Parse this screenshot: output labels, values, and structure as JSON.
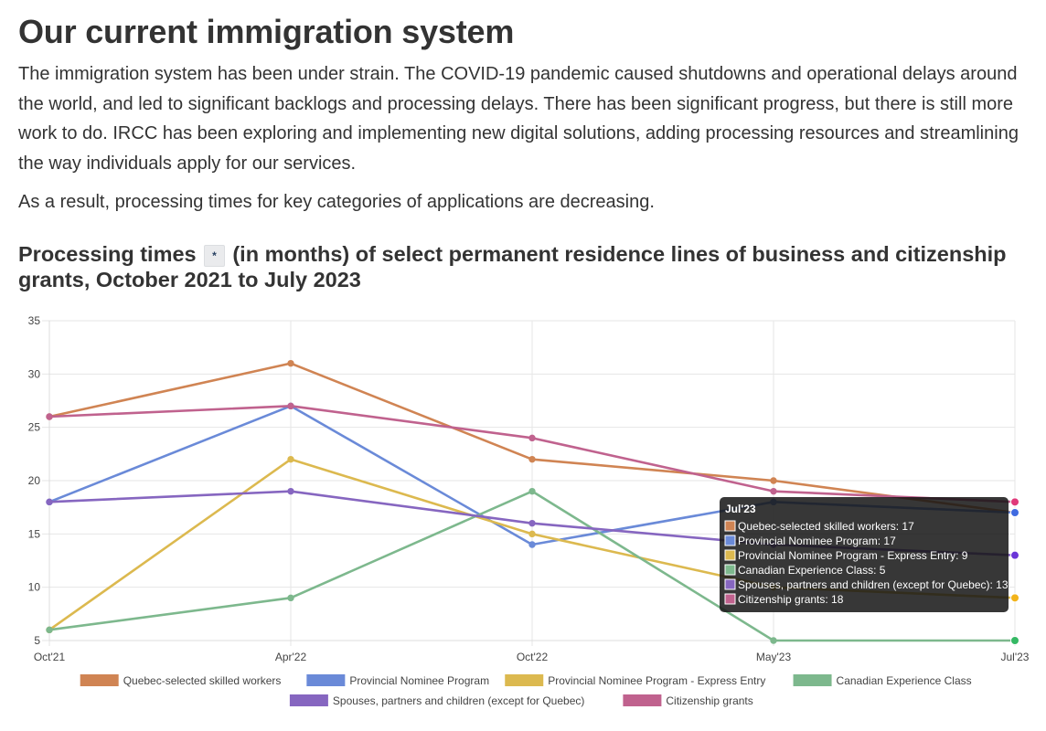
{
  "heading": "Our current immigration system",
  "paragraph1": "The immigration system has been under strain. The COVID-19 pandemic caused shutdowns and operational delays around the world, and led to significant backlogs and processing delays. There has been significant progress, but there is still more work to do. IRCC has been exploring and implementing new digital solutions, adding processing resources and streamlining the way individuals apply for our services.",
  "paragraph2": "As a result, processing times for key categories of applications are decreasing.",
  "chart_title_part1": "Processing times",
  "footnote_label": "*",
  "chart_title_part2": "(in months) of select permanent residence lines of business and citizenship grants, October 2021 to July 2023",
  "chart_data": {
    "type": "line",
    "categories": [
      "Oct'21",
      "Apr'22",
      "Oct'22",
      "May'23",
      "Jul'23"
    ],
    "ylim": [
      5,
      35
    ],
    "yticks": [
      5,
      10,
      15,
      20,
      25,
      30,
      35
    ],
    "grid": true,
    "legend_position": "bottom",
    "series": [
      {
        "name": "Quebec-selected skilled workers",
        "color": "#d08453",
        "values": [
          26,
          31,
          22,
          20,
          17
        ]
      },
      {
        "name": "Provincial Nominee Program",
        "color": "#6a8ad8",
        "values": [
          18,
          27,
          14,
          18,
          17
        ]
      },
      {
        "name": "Provincial Nominee Program - Express Entry",
        "color": "#dcb94f",
        "values": [
          6,
          22,
          15,
          10,
          9
        ]
      },
      {
        "name": "Canadian Experience Class",
        "color": "#7db88d",
        "values": [
          6,
          9,
          19,
          5,
          5
        ]
      },
      {
        "name": "Spouses, partners and children (except for Quebec)",
        "color": "#8666c0",
        "values": [
          18,
          19,
          16,
          14,
          13
        ]
      },
      {
        "name": "Citizenship grants",
        "color": "#c0628e",
        "values": [
          26,
          27,
          24,
          19,
          18
        ]
      }
    ],
    "tooltip": {
      "title": "Jul'23",
      "items": [
        "Quebec-selected skilled workers: 17",
        "Provincial Nominee Program: 17",
        "Provincial Nominee Program - Express Entry: 9",
        "Canadian Experience Class: 5",
        "Spouses, partners and children (except for Quebec): 13",
        "Citizenship grants: 18"
      ],
      "highlight_colors": [
        "#f07a1a",
        "#3f6ae0",
        "#f2b31a",
        "#35b864",
        "#6a35d8",
        "#e0397a"
      ]
    }
  }
}
